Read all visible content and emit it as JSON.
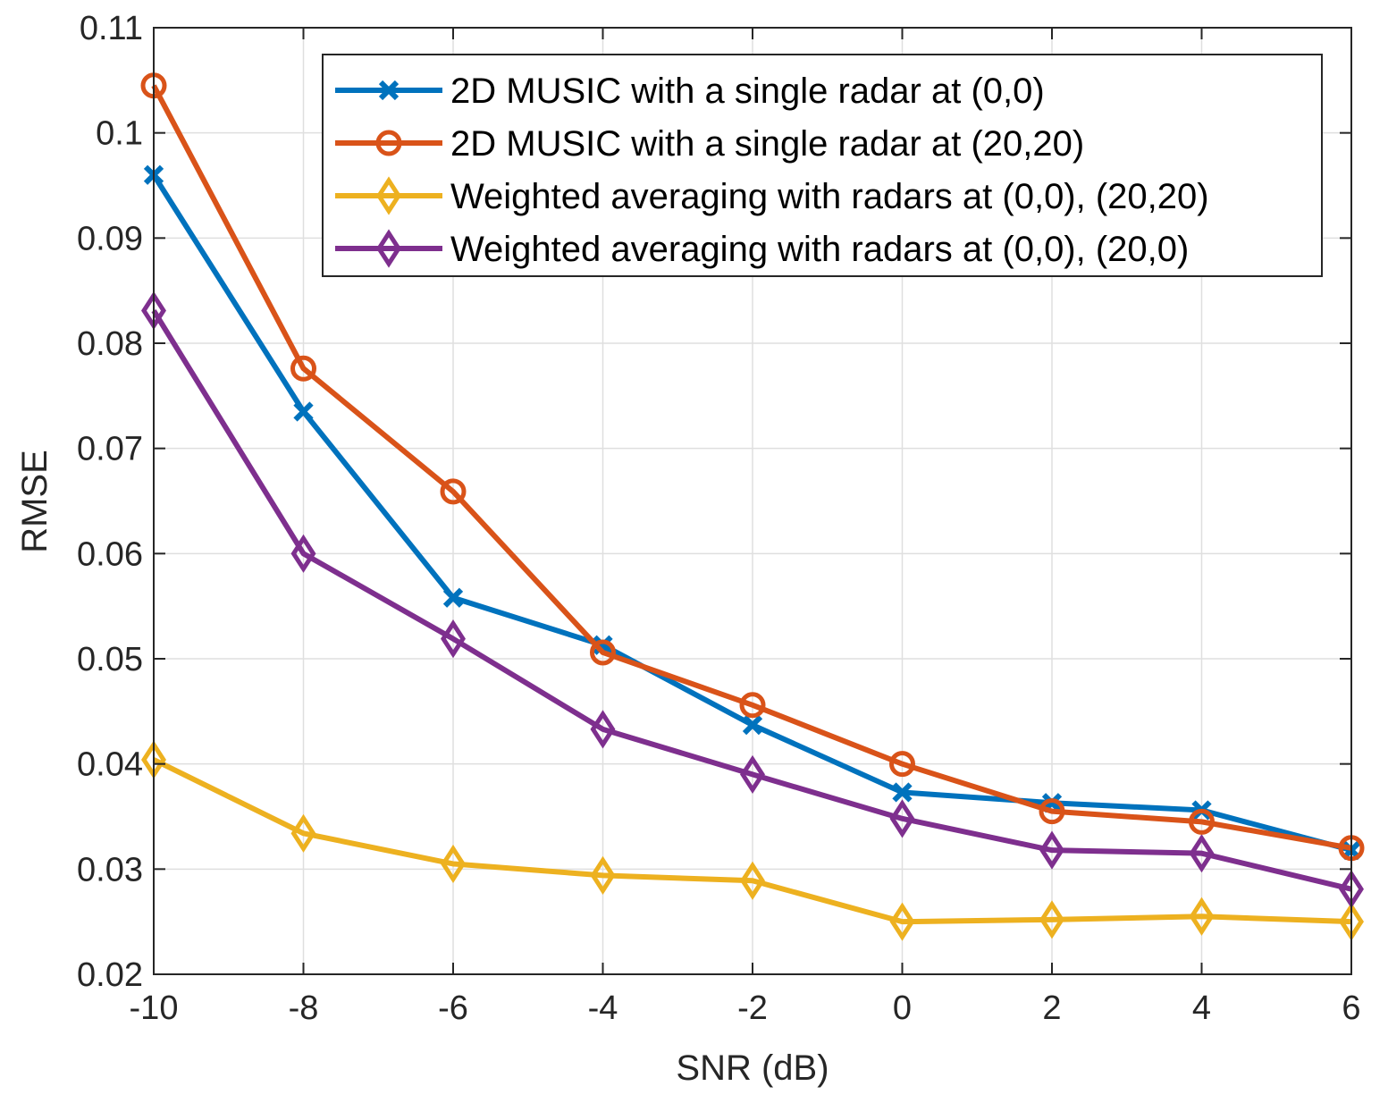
{
  "chart_data": {
    "type": "line",
    "title": "",
    "xlabel": "SNR (dB)",
    "ylabel": "RMSE",
    "xlim": [
      -10,
      6
    ],
    "ylim": [
      0.02,
      0.11
    ],
    "x": [
      -10,
      -8,
      -6,
      -4,
      -2,
      0,
      2,
      4,
      6
    ],
    "xticks": [
      "-10",
      "-8",
      "-6",
      "-4",
      "-2",
      "0",
      "2",
      "4",
      "6"
    ],
    "yticks": [
      "0.02",
      "0.03",
      "0.04",
      "0.05",
      "0.06",
      "0.07",
      "0.08",
      "0.09",
      "0.1",
      "0.11"
    ],
    "grid": true,
    "legend_position": "top-right",
    "series": [
      {
        "name": "2D MUSIC with a single radar at (0,0)",
        "color": "#0072BD",
        "marker": "x",
        "values": [
          0.096,
          0.0735,
          0.0558,
          0.0513,
          0.0437,
          0.0373,
          0.0363,
          0.0356,
          0.0318
        ]
      },
      {
        "name": "2D MUSIC with a single radar at (20,20)",
        "color": "#D95319",
        "marker": "circle",
        "values": [
          0.1045,
          0.0776,
          0.0659,
          0.0506,
          0.0456,
          0.04,
          0.0355,
          0.0345,
          0.032
        ]
      },
      {
        "name": "Weighted averaging with radars at (0,0), (20,20)",
        "color": "#EDB120",
        "marker": "diamond",
        "values": [
          0.0404,
          0.0334,
          0.0305,
          0.0294,
          0.0289,
          0.025,
          0.0252,
          0.0255,
          0.025
        ]
      },
      {
        "name": "Weighted averaging with radars at (0,0), (20,0)",
        "color": "#7E2F8E",
        "marker": "diamond",
        "values": [
          0.0831,
          0.06,
          0.0519,
          0.0433,
          0.039,
          0.0348,
          0.0318,
          0.0315,
          0.0281
        ]
      }
    ]
  }
}
